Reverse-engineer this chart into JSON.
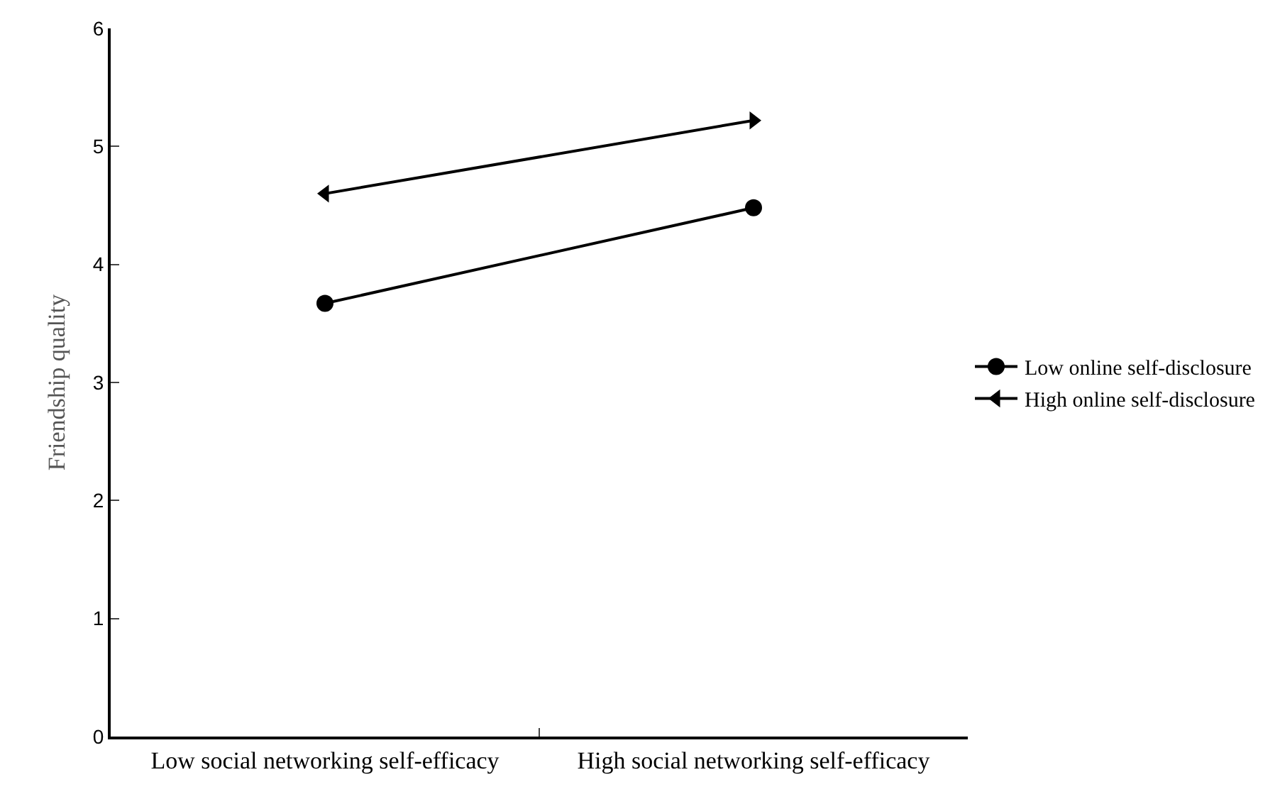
{
  "chart_data": {
    "type": "line",
    "ylabel": "Friendship quality",
    "categories": [
      "Low social networking self-efficacy",
      "High social networking self-efficacy"
    ],
    "series": [
      {
        "name": "Low online self-disclosure",
        "color": "#000000",
        "marker": "circle",
        "values": [
          3.67,
          4.48
        ]
      },
      {
        "name": "High online self-disclosure",
        "color": "#000000",
        "marker": "triangle",
        "values": [
          4.6,
          5.22
        ]
      }
    ],
    "ylim": [
      0,
      6
    ],
    "yticks": [
      0,
      1,
      2,
      3,
      4,
      5,
      6
    ],
    "legend": "right",
    "line_style": "solid"
  }
}
